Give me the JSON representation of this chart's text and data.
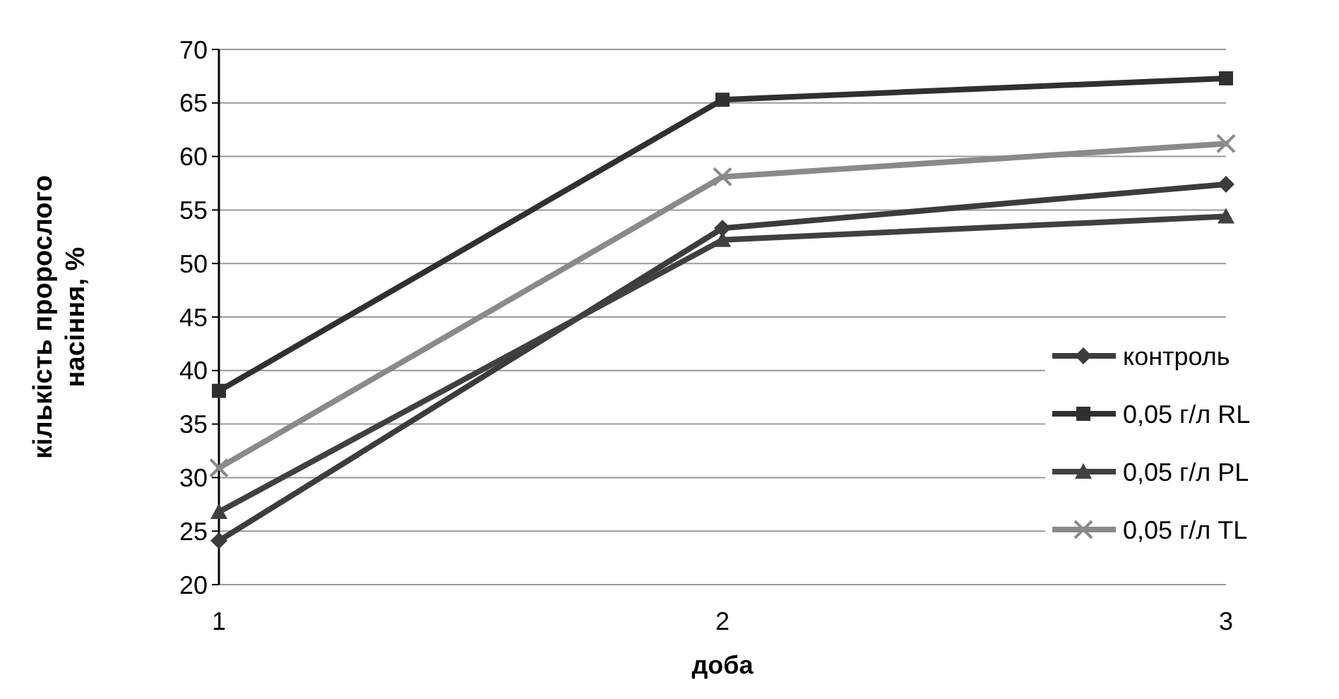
{
  "chart_data": {
    "type": "line",
    "xlabel": "доба",
    "ylabel": "кількість пророслого\nнасіння, %",
    "x": [
      1,
      2,
      3
    ],
    "xlim": [
      1,
      3
    ],
    "xticks": [
      1,
      2,
      3
    ],
    "ylim": [
      20,
      70
    ],
    "yticks": [
      20,
      25,
      30,
      35,
      40,
      45,
      50,
      55,
      60,
      65,
      70
    ],
    "grid": "y",
    "legend": "right",
    "line_style": "solid",
    "series": [
      {
        "name": "контроль",
        "color": "#3c3c3c",
        "marker": "diamond",
        "values": [
          24.1,
          53.3,
          57.4
        ]
      },
      {
        "name": "0,05 г/л RL",
        "color": "#303030",
        "marker": "square",
        "values": [
          38.1,
          65.3,
          67.3
        ]
      },
      {
        "name": "0,05 г/л PL",
        "color": "#404040",
        "marker": "triangle",
        "values": [
          26.8,
          52.2,
          54.4
        ]
      },
      {
        "name": "0,05 г/л TL",
        "color": "#8a8a8a",
        "marker": "cross",
        "values": [
          30.9,
          58.1,
          61.2
        ]
      }
    ]
  }
}
